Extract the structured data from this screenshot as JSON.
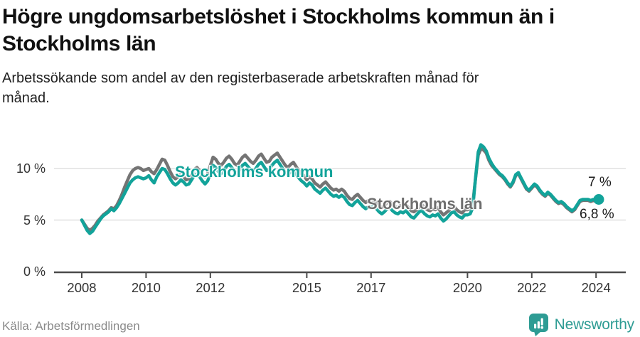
{
  "header": {
    "title": "Högre ungdomsarbetslöshet i Stockholms kommun än i Stockholms län",
    "subtitle": "Arbetssökande som andel av den registerbaserade arbetskraften månad för månad."
  },
  "footer": {
    "source": "Källa: Arbetsförmedlingen",
    "brand": "Newsworthy"
  },
  "colors": {
    "kommun_teal": "#12A39A",
    "lan_gray": "#747474",
    "axis": "#4b4b4b",
    "gridline": "#e0e0e0",
    "brand_teal": "#2E9C94"
  },
  "chart_data": {
    "type": "line",
    "title": "Högre ungdomsarbetslöshet i Stockholms kommun än i Stockholms län",
    "subtitle": "Arbetssökande som andel av den registerbaserade arbetskraften månad för månad.",
    "unit": "%",
    "x_start_year": 2008,
    "x_months_per_step": 1,
    "x_end": "2024-02",
    "ylim": [
      0,
      13
    ],
    "grid": "horizontal-only",
    "y_ticks": [
      {
        "value": 0,
        "label": "0 %"
      },
      {
        "value": 5,
        "label": "5 %"
      },
      {
        "value": 10,
        "label": "10 %"
      }
    ],
    "x_ticks": [
      {
        "year": 2008,
        "label": "2008"
      },
      {
        "year": 2010,
        "label": "2010"
      },
      {
        "year": 2012,
        "label": "2012"
      },
      {
        "year": 2015,
        "label": "2015"
      },
      {
        "year": 2017,
        "label": "2017"
      },
      {
        "year": 2020,
        "label": "2020"
      },
      {
        "year": 2022,
        "label": "2022"
      },
      {
        "year": 2024,
        "label": "2024"
      }
    ],
    "end_labels": {
      "kommun": "7 %",
      "lan": "6,8 %"
    },
    "legend_position": "inline-on-chart",
    "series": [
      {
        "name": "Stockholms län",
        "color": "#747474",
        "values": [
          5.0,
          4.6,
          4.2,
          4.0,
          4.2,
          4.5,
          4.9,
          5.2,
          5.5,
          5.7,
          5.9,
          6.2,
          6.1,
          6.4,
          6.9,
          7.5,
          8.2,
          8.8,
          9.4,
          9.8,
          10.0,
          10.1,
          10.0,
          9.8,
          9.9,
          10.0,
          9.7,
          9.5,
          9.9,
          10.4,
          10.9,
          10.8,
          10.3,
          9.7,
          9.2,
          9.0,
          9.2,
          9.5,
          9.2,
          8.9,
          9.0,
          9.4,
          9.9,
          10.1,
          9.8,
          9.4,
          9.2,
          9.5,
          10.3,
          11.1,
          10.9,
          10.5,
          10.3,
          10.6,
          11.0,
          11.2,
          10.9,
          10.5,
          10.3,
          10.7,
          11.1,
          11.3,
          11.0,
          10.7,
          10.5,
          10.8,
          11.2,
          11.4,
          11.0,
          10.6,
          10.7,
          11.1,
          11.3,
          11.5,
          11.1,
          10.7,
          10.3,
          10.1,
          10.4,
          10.6,
          10.2,
          9.8,
          9.5,
          9.3,
          8.9,
          9.2,
          9.0,
          8.6,
          8.4,
          8.2,
          8.5,
          8.7,
          8.4,
          8.1,
          7.9,
          8.0,
          7.8,
          8.0,
          7.8,
          7.4,
          7.1,
          7.0,
          7.3,
          7.5,
          7.2,
          6.9,
          6.7,
          6.9,
          6.8,
          7.0,
          6.7,
          6.4,
          6.2,
          6.4,
          6.7,
          6.8,
          6.5,
          6.3,
          6.2,
          6.4,
          6.3,
          6.5,
          6.2,
          5.9,
          5.8,
          6.0,
          6.3,
          6.5,
          6.2,
          6.0,
          5.9,
          6.1,
          6.0,
          6.2,
          5.8,
          5.5,
          5.7,
          5.9,
          6.2,
          6.3,
          6.0,
          5.8,
          5.7,
          6.0,
          6.0,
          6.1,
          6.6,
          9.0,
          11.3,
          11.9,
          11.8,
          11.5,
          10.8,
          10.3,
          10.0,
          9.7,
          9.4,
          9.2,
          8.9,
          8.5,
          8.2,
          8.6,
          9.3,
          9.5,
          9.0,
          8.5,
          8.0,
          7.8,
          8.1,
          8.4,
          8.2,
          7.8,
          7.5,
          7.3,
          7.6,
          7.4,
          7.1,
          6.8,
          6.6,
          6.7,
          6.5,
          6.2,
          6.0,
          5.8,
          6.0,
          6.4,
          6.8,
          6.9,
          6.9,
          6.9,
          6.8,
          6.9,
          6.8,
          6.8
        ],
        "latest_value_label": "6,8 %"
      },
      {
        "name": "Stockholms kommun",
        "color": "#12A39A",
        "values": [
          5.0,
          4.5,
          4.0,
          3.7,
          3.9,
          4.3,
          4.7,
          5.1,
          5.4,
          5.6,
          5.8,
          6.1,
          5.9,
          6.2,
          6.6,
          7.1,
          7.6,
          8.1,
          8.6,
          8.9,
          9.1,
          9.2,
          9.1,
          9.0,
          9.1,
          9.3,
          8.9,
          8.6,
          9.2,
          9.6,
          10.0,
          9.9,
          9.5,
          9.0,
          8.6,
          8.4,
          8.6,
          8.9,
          8.7,
          8.4,
          8.5,
          8.9,
          9.3,
          9.5,
          9.2,
          8.8,
          8.5,
          8.8,
          9.5,
          10.3,
          10.1,
          9.7,
          9.5,
          9.8,
          10.2,
          10.4,
          10.1,
          9.7,
          9.5,
          9.9,
          10.3,
          10.5,
          10.2,
          9.9,
          9.7,
          10.0,
          10.4,
          10.6,
          10.2,
          9.8,
          9.9,
          10.3,
          10.6,
          10.8,
          10.4,
          10.0,
          9.6,
          9.4,
          9.7,
          9.9,
          9.5,
          9.1,
          8.8,
          8.6,
          8.3,
          8.6,
          8.4,
          8.0,
          7.8,
          7.6,
          7.9,
          8.1,
          7.8,
          7.5,
          7.3,
          7.4,
          7.2,
          7.4,
          7.2,
          6.8,
          6.5,
          6.4,
          6.7,
          6.9,
          6.6,
          6.3,
          6.1,
          6.3,
          6.2,
          6.4,
          6.1,
          5.8,
          5.6,
          5.8,
          6.1,
          6.2,
          5.9,
          5.7,
          5.6,
          5.8,
          5.7,
          5.9,
          5.6,
          5.3,
          5.2,
          5.5,
          5.8,
          5.9,
          5.6,
          5.4,
          5.3,
          5.5,
          5.4,
          5.6,
          5.2,
          4.9,
          5.1,
          5.4,
          5.7,
          5.8,
          5.5,
          5.3,
          5.2,
          5.5,
          5.5,
          5.6,
          6.2,
          9.1,
          11.6,
          12.3,
          12.1,
          11.7,
          11.0,
          10.5,
          10.1,
          9.8,
          9.5,
          9.3,
          9.0,
          8.6,
          8.3,
          8.7,
          9.4,
          9.6,
          9.1,
          8.6,
          8.1,
          7.9,
          8.2,
          8.5,
          8.3,
          7.9,
          7.6,
          7.4,
          7.7,
          7.5,
          7.2,
          6.9,
          6.7,
          6.8,
          6.6,
          6.3,
          6.1,
          5.9,
          6.1,
          6.5,
          6.9,
          7.0,
          7.0,
          7.0,
          6.9,
          7.0,
          7.0,
          7.0
        ],
        "latest_value_label": "7 %",
        "end_dot": true
      }
    ]
  }
}
